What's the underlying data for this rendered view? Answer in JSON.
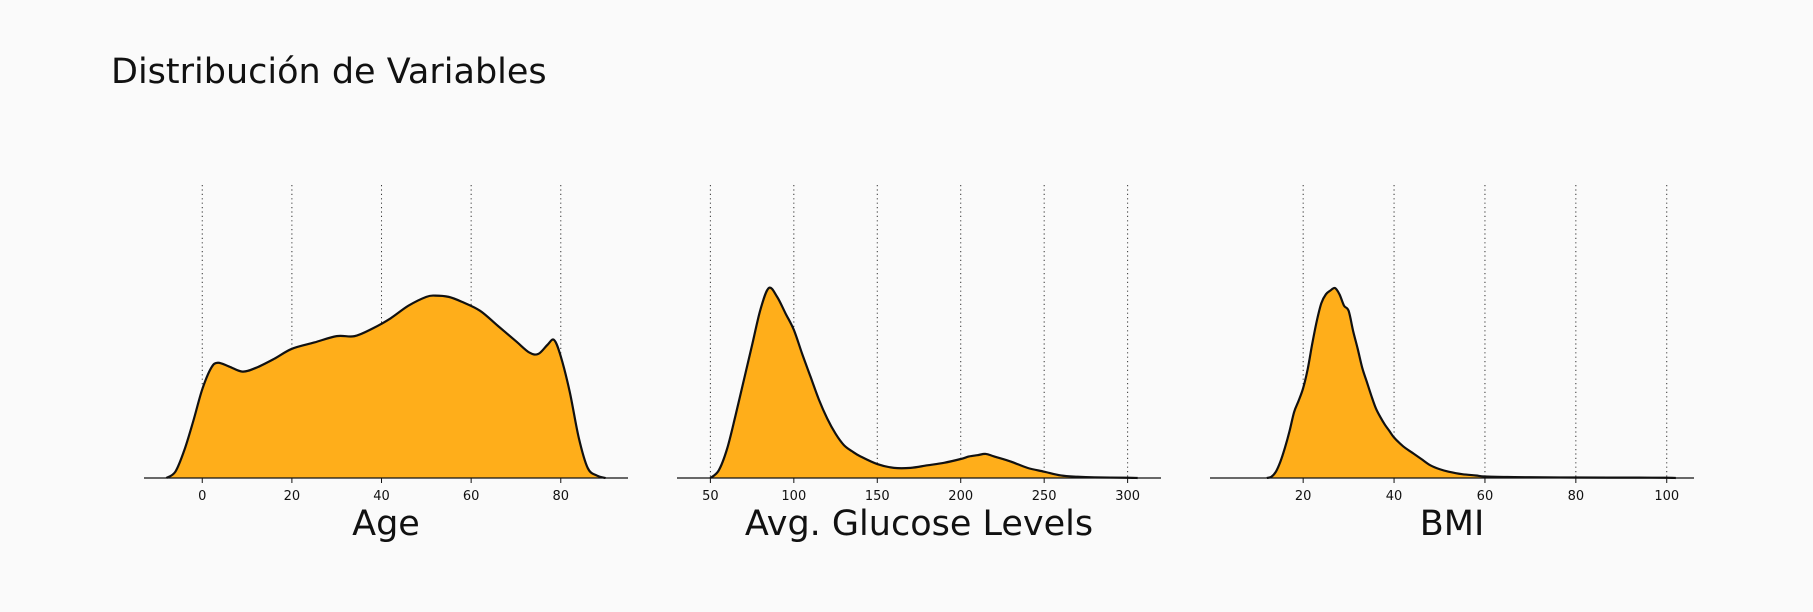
{
  "page": {
    "title": "Distribución de Variables"
  },
  "colors": {
    "fill": "#ffae1a",
    "stroke": "#111111",
    "background": "#fafafa"
  },
  "chart_data": [
    {
      "type": "area",
      "xlabel": "Age",
      "xlim": [
        -13,
        95
      ],
      "xticks": [
        0,
        20,
        40,
        60,
        80
      ],
      "grid": "vertical-dotted",
      "x": [
        -8,
        -6,
        -4,
        -2,
        0,
        2,
        3.5,
        6,
        9,
        12,
        16,
        20,
        25,
        30,
        34,
        38,
        42,
        46,
        50,
        52,
        55,
        58,
        62,
        66,
        70,
        73,
        75,
        77,
        78.5,
        80,
        82,
        84,
        86,
        88,
        90
      ],
      "y": [
        0.0,
        0.05,
        0.22,
        0.45,
        0.7,
        0.87,
        0.91,
        0.88,
        0.84,
        0.87,
        0.94,
        1.02,
        1.07,
        1.12,
        1.12,
        1.18,
        1.26,
        1.36,
        1.43,
        1.44,
        1.43,
        1.39,
        1.32,
        1.2,
        1.08,
        0.99,
        0.98,
        1.05,
        1.09,
        0.96,
        0.68,
        0.32,
        0.08,
        0.02,
        0.0
      ]
    },
    {
      "type": "area",
      "xlabel": "Avg. Glucose Levels",
      "xlim": [
        30,
        320
      ],
      "xticks": [
        50,
        100,
        150,
        200,
        250,
        300
      ],
      "grid": "vertical-dotted",
      "x": [
        50,
        55,
        60,
        65,
        70,
        75,
        80,
        85,
        90,
        95,
        100,
        105,
        110,
        115,
        120,
        125,
        130,
        135,
        140,
        150,
        160,
        170,
        180,
        190,
        200,
        205,
        210,
        215,
        220,
        230,
        240,
        250,
        260,
        270,
        280,
        300,
        306
      ],
      "y": [
        0.0,
        0.06,
        0.23,
        0.49,
        0.77,
        1.05,
        1.33,
        1.5,
        1.43,
        1.3,
        1.17,
        0.98,
        0.8,
        0.62,
        0.47,
        0.35,
        0.26,
        0.21,
        0.17,
        0.11,
        0.08,
        0.08,
        0.1,
        0.12,
        0.15,
        0.17,
        0.18,
        0.19,
        0.17,
        0.13,
        0.08,
        0.05,
        0.02,
        0.01,
        0.005,
        0.002,
        0.0
      ]
    },
    {
      "type": "area",
      "xlabel": "BMI",
      "xlim": [
        -0.5,
        106
      ],
      "xticks": [
        20,
        40,
        60,
        80,
        100
      ],
      "grid": "vertical-dotted",
      "x": [
        12,
        13,
        14,
        15,
        16,
        17,
        18,
        19,
        20,
        21,
        22,
        23,
        24,
        25,
        26,
        27,
        28,
        29,
        30,
        31,
        32,
        33,
        34,
        35,
        36,
        37,
        38,
        39,
        40,
        42,
        44,
        46,
        48,
        50,
        52,
        55,
        58,
        60,
        65,
        70,
        80,
        90,
        100,
        102
      ],
      "y": [
        0.0,
        0.01,
        0.05,
        0.13,
        0.24,
        0.37,
        0.52,
        0.61,
        0.71,
        0.86,
        1.06,
        1.24,
        1.38,
        1.45,
        1.48,
        1.5,
        1.45,
        1.36,
        1.32,
        1.16,
        1.02,
        0.87,
        0.76,
        0.65,
        0.55,
        0.48,
        0.42,
        0.37,
        0.32,
        0.25,
        0.2,
        0.15,
        0.1,
        0.07,
        0.05,
        0.03,
        0.02,
        0.012,
        0.008,
        0.006,
        0.004,
        0.003,
        0.002,
        0.0
      ]
    }
  ]
}
